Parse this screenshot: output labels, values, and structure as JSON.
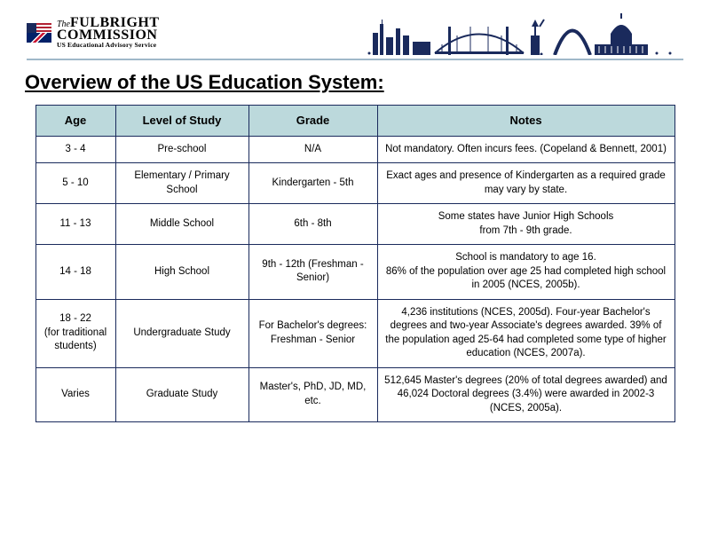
{
  "header": {
    "logo": {
      "line1": "The",
      "line2": "FULBRIGHT",
      "line3": "COMMISSION",
      "sub": "US Educational Advisory Service"
    }
  },
  "title": "Overview of the US Education System:",
  "table": {
    "header_bg": "#bcd9dc",
    "border_color": "#1a2a5c",
    "columns": [
      "Age",
      "Level of Study",
      "Grade",
      "Notes"
    ],
    "rows": [
      {
        "age": "3 - 4",
        "level": "Pre-school",
        "grade": "N/A",
        "notes": "Not mandatory. Often incurs fees. (Copeland & Bennett, 2001)"
      },
      {
        "age": "5 - 10",
        "level": "Elementary / Primary School",
        "grade": "Kindergarten - 5th",
        "notes": "Exact ages and presence of Kindergarten as a required grade may vary by state."
      },
      {
        "age": "11 - 13",
        "level": "Middle School",
        "grade": "6th - 8th",
        "notes": "Some states have Junior High Schools\nfrom 7th - 9th grade."
      },
      {
        "age": "14 - 18",
        "level": "High School",
        "grade": "9th - 12th (Freshman - Senior)",
        "notes": "School is mandatory to age 16.\n86% of the population over age 25 had completed high school in 2005 (NCES, 2005b)."
      },
      {
        "age": "18 - 22\n(for traditional students)",
        "level": "Undergraduate Study",
        "grade": "For Bachelor's degrees: Freshman - Senior",
        "notes": "4,236 institutions (NCES, 2005d). Four-year Bachelor's degrees and two-year Associate's degrees awarded. 39% of the population aged 25-64 had completed some type of higher education (NCES, 2007a)."
      },
      {
        "age": "Varies",
        "level": "Graduate Study",
        "grade": "Master's, PhD, JD, MD, etc.",
        "notes": "512,645 Master's degrees (20% of total degrees awarded) and 46,024 Doctoral degrees (3.4%) were awarded in 2002-3\n(NCES, 2005a)."
      }
    ]
  }
}
